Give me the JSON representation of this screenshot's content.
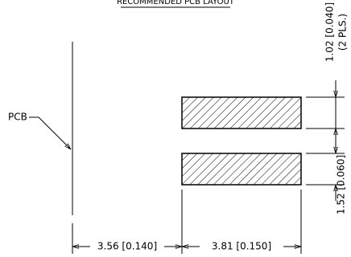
{
  "title": "RECOMMENDED PCB LAYOUT",
  "pcb_label": "PCB",
  "dimensions": {
    "pad_width": "1.02 [0.040]",
    "pad_width_note": "(2 PLS.)",
    "pad_gap": "1.52 [0.060]",
    "pcb_to_pad": "3.56 [0.140]",
    "pad_length": "3.81 [0.150]"
  }
}
